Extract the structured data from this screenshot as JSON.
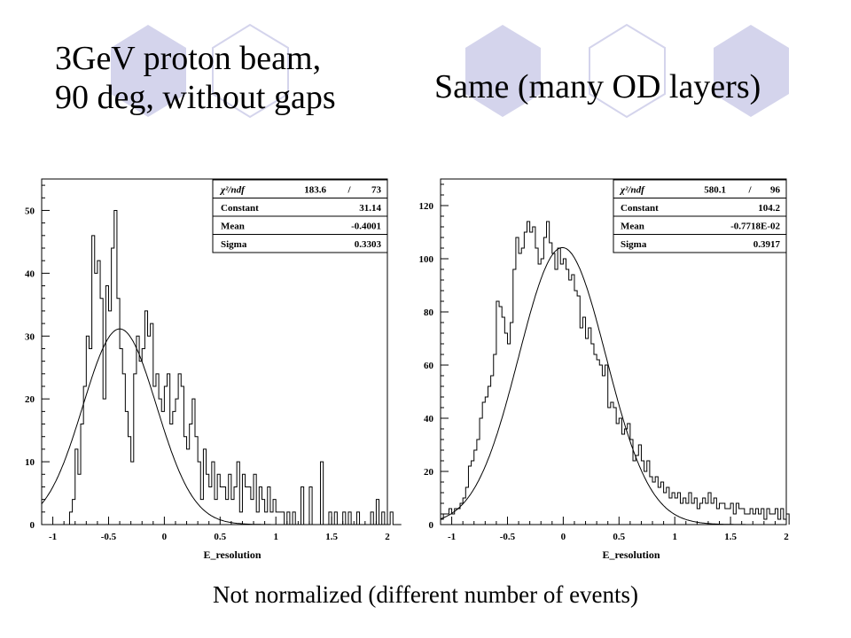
{
  "slide": {
    "title_left_line1": "3GeV proton beam,",
    "title_left_line2": "90 deg, without gaps",
    "title_right": "Same (many OD layers)",
    "caption": "Not normalized (different number of events)"
  },
  "chart_data": [
    {
      "type": "bar",
      "style": "histogram-with-gaussian-fit",
      "xlabel": "E_resolution",
      "xlim": [
        -1.1,
        2.0
      ],
      "ylim": [
        0,
        55
      ],
      "xticks": [
        "-1",
        "-0.5",
        "0",
        "0.5",
        "1",
        "1.5",
        "2"
      ],
      "yticks": [
        "0",
        "10",
        "20",
        "30",
        "40",
        "50"
      ],
      "stats": {
        "chi2_label": "χ²/ndf",
        "chi2": "183.6",
        "slash": "/",
        "ndf": "73",
        "constant_label": "Constant",
        "constant": "31.14",
        "mean_label": "Mean",
        "mean": "-0.4001",
        "sigma_label": "Sigma",
        "sigma": "0.3303"
      },
      "fit": {
        "constant": 31.14,
        "mean": -0.4001,
        "sigma": 0.3303
      },
      "bins": {
        "start": -1.1,
        "width": 0.025,
        "counts": [
          0,
          0,
          0,
          0,
          0,
          0,
          0,
          0,
          0,
          0,
          2,
          4,
          12,
          8,
          16,
          22,
          30,
          28,
          46,
          40,
          42,
          36,
          20,
          38,
          34,
          44,
          50,
          36,
          28,
          24,
          18,
          14,
          10,
          24,
          30,
          26,
          28,
          34,
          30,
          32,
          22,
          24,
          20,
          18,
          22,
          24,
          16,
          18,
          20,
          24,
          22,
          14,
          12,
          16,
          20,
          14,
          10,
          4,
          12,
          8,
          6,
          10,
          4,
          8,
          6,
          6,
          4,
          8,
          4,
          6,
          10,
          2,
          8,
          6,
          6,
          4,
          8,
          2,
          6,
          4,
          2,
          6,
          2,
          4,
          2,
          2,
          2,
          0,
          2,
          0,
          2,
          0,
          0,
          6,
          0,
          0,
          6,
          0,
          0,
          0,
          10,
          0,
          0,
          2,
          0,
          2,
          0,
          0,
          2,
          0,
          2,
          0,
          0,
          2,
          0,
          0,
          0,
          0,
          2,
          0,
          4,
          0,
          2,
          0,
          0,
          2,
          0,
          0,
          0
        ]
      }
    },
    {
      "type": "bar",
      "style": "histogram-with-gaussian-fit",
      "xlabel": "E_resolution",
      "xlim": [
        -1.1,
        2.0
      ],
      "ylim": [
        0,
        130
      ],
      "xticks": [
        "-1",
        "-0.5",
        "0",
        "0.5",
        "1",
        "1.5",
        "2"
      ],
      "yticks": [
        "0",
        "20",
        "40",
        "60",
        "80",
        "100",
        "120"
      ],
      "stats": {
        "chi2_label": "χ²/ndf",
        "chi2": "580.1",
        "slash": "/",
        "ndf": "96",
        "constant_label": "Constant",
        "constant": "104.2",
        "mean_label": "Mean",
        "mean": "-0.7718E-02",
        "sigma_label": "Sigma",
        "sigma": "0.3917"
      },
      "fit": {
        "constant": 104.2,
        "mean": -0.007718,
        "sigma": 0.3917
      },
      "bins": {
        "start": -1.1,
        "width": 0.025,
        "counts": [
          2,
          4,
          4,
          6,
          4,
          6,
          6,
          8,
          10,
          14,
          22,
          24,
          28,
          32,
          40,
          46,
          48,
          52,
          56,
          64,
          84,
          82,
          78,
          72,
          68,
          76,
          96,
          108,
          102,
          104,
          110,
          114,
          110,
          112,
          104,
          98,
          100,
          108,
          114,
          106,
          102,
          96,
          104,
          98,
          100,
          96,
          92,
          94,
          88,
          86,
          74,
          78,
          70,
          74,
          68,
          64,
          62,
          60,
          56,
          60,
          44,
          46,
          44,
          38,
          40,
          34,
          36,
          38,
          32,
          24,
          26,
          30,
          24,
          20,
          24,
          18,
          16,
          18,
          14,
          16,
          12,
          14,
          10,
          12,
          10,
          12,
          8,
          10,
          8,
          12,
          8,
          10,
          6,
          8,
          10,
          8,
          12,
          8,
          10,
          6,
          8,
          8,
          6,
          6,
          8,
          4,
          8,
          6,
          6,
          4,
          4,
          6,
          4,
          6,
          4,
          6,
          2,
          6,
          4,
          4,
          6,
          2,
          6,
          2,
          4
        ]
      }
    }
  ]
}
